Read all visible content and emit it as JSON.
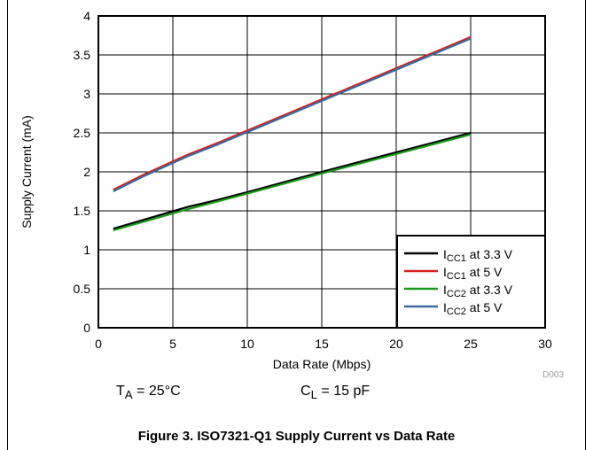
{
  "chart_data": {
    "type": "line",
    "xlabel": "Data Rate (Mbps)",
    "ylabel": "Supply Current (mA)",
    "xlim": [
      0,
      30
    ],
    "ylim": [
      0,
      4
    ],
    "xticks": [
      0,
      5,
      10,
      15,
      20,
      25,
      30
    ],
    "yticks": [
      0,
      0.5,
      1,
      1.5,
      2,
      2.5,
      3,
      3.5,
      4
    ],
    "xtick_labels": [
      "0",
      "5",
      "10",
      "15",
      "20",
      "25",
      "30"
    ],
    "ytick_labels": [
      "0",
      "0.5",
      "1",
      "1.5",
      "2",
      "2.5",
      "3",
      "3.5",
      "4"
    ],
    "grid": true,
    "legend_position": "bottom-right",
    "series": [
      {
        "name": "ICC1 at 3.3 V",
        "label_main": "I",
        "label_sub": "CC1",
        "label_rest": " at 3.3 V",
        "color": "#000000",
        "x": [
          1,
          6,
          8,
          10,
          15,
          20,
          25
        ],
        "y": [
          1.27,
          1.55,
          1.64,
          1.74,
          2.0,
          2.25,
          2.5
        ]
      },
      {
        "name": "ICC1 at 5 V",
        "label_main": "I",
        "label_sub": "CC1",
        "label_rest": " at 5 V",
        "color": "#d62020",
        "x": [
          1,
          3,
          6,
          8,
          10,
          15,
          20,
          25
        ],
        "y": [
          1.77,
          1.96,
          2.22,
          2.37,
          2.53,
          2.93,
          3.33,
          3.73
        ]
      },
      {
        "name": "ICC2 at 3.3 V",
        "label_main": "I",
        "label_sub": "CC2",
        "label_rest": " at 3.3 V",
        "color": "#1a9a1a",
        "x": [
          1,
          6,
          8,
          10,
          15,
          20,
          25
        ],
        "y": [
          1.25,
          1.52,
          1.62,
          1.72,
          1.98,
          2.23,
          2.48
        ]
      },
      {
        "name": "ICC2 at 5 V",
        "label_main": "I",
        "label_sub": "CC2",
        "label_rest": " at 5 V",
        "color": "#3a6aa0",
        "x": [
          1,
          3,
          6,
          8,
          10,
          15,
          20,
          25
        ],
        "y": [
          1.75,
          1.94,
          2.2,
          2.35,
          2.51,
          2.91,
          3.31,
          3.71
        ]
      }
    ],
    "code": "D003"
  },
  "conditions": {
    "ta_main": "T",
    "ta_sub": "A",
    "ta_rest": " = 25°C",
    "cl_main": "C",
    "cl_sub": "L",
    "cl_rest": " = 15 pF"
  },
  "caption": "Figure 3. ISO7321-Q1 Supply Current vs Data Rate"
}
